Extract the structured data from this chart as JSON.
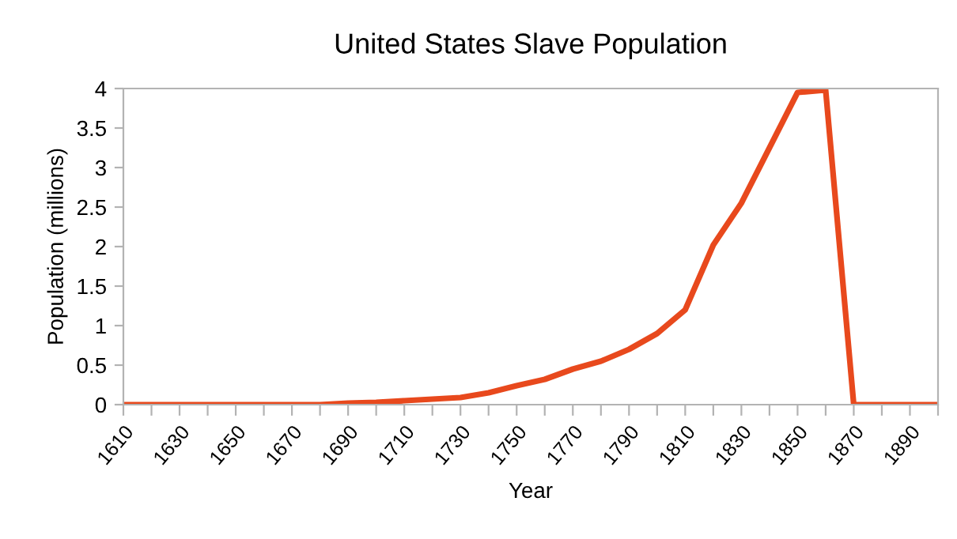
{
  "chart_data": {
    "type": "line",
    "title": "United States Slave Population",
    "xlabel": "Year",
    "ylabel": "Population (millions)",
    "x": [
      1610,
      1620,
      1630,
      1640,
      1650,
      1660,
      1670,
      1680,
      1690,
      1700,
      1710,
      1720,
      1730,
      1740,
      1750,
      1760,
      1770,
      1780,
      1790,
      1800,
      1810,
      1820,
      1830,
      1840,
      1850,
      1860,
      1870,
      1880,
      1890,
      1900
    ],
    "series": [
      {
        "color": "#e8491d",
        "values": [
          0,
          0,
          0,
          0,
          0,
          0,
          0,
          0,
          0.02,
          0.03,
          0.05,
          0.07,
          0.09,
          0.15,
          0.24,
          0.32,
          0.45,
          0.55,
          0.7,
          0.9,
          1.2,
          2.02,
          2.55,
          3.25,
          3.95,
          3.98,
          0,
          0,
          0,
          0
        ]
      }
    ],
    "xlim": [
      1610,
      1900
    ],
    "xticks": [
      1610,
      {
        "value": 1620,
        "label": null
      },
      1630,
      {
        "value": 1640,
        "label": null
      },
      1650,
      {
        "value": 1660,
        "label": null
      },
      1670,
      {
        "value": 1680,
        "label": null
      },
      1690,
      {
        "value": 1700,
        "label": null
      },
      1710,
      {
        "value": 1720,
        "label": null
      },
      1730,
      {
        "value": 1740,
        "label": null
      },
      1750,
      {
        "value": 1760,
        "label": null
      },
      1770,
      {
        "value": 1780,
        "label": null
      },
      1790,
      {
        "value": 1800,
        "label": null
      },
      1810,
      {
        "value": 1820,
        "label": null
      },
      1830,
      {
        "value": 1840,
        "label": null
      },
      1850,
      {
        "value": 1860,
        "label": null
      },
      1870,
      {
        "value": 1880,
        "label": null
      },
      1890,
      {
        "value": 1900,
        "label": null
      }
    ],
    "ylim": [
      0,
      4
    ],
    "yticks": [
      0,
      0.5,
      1,
      1.5,
      2,
      2.5,
      3,
      3.5,
      4
    ],
    "grid": false,
    "marker": "none",
    "line_style": "solid"
  }
}
